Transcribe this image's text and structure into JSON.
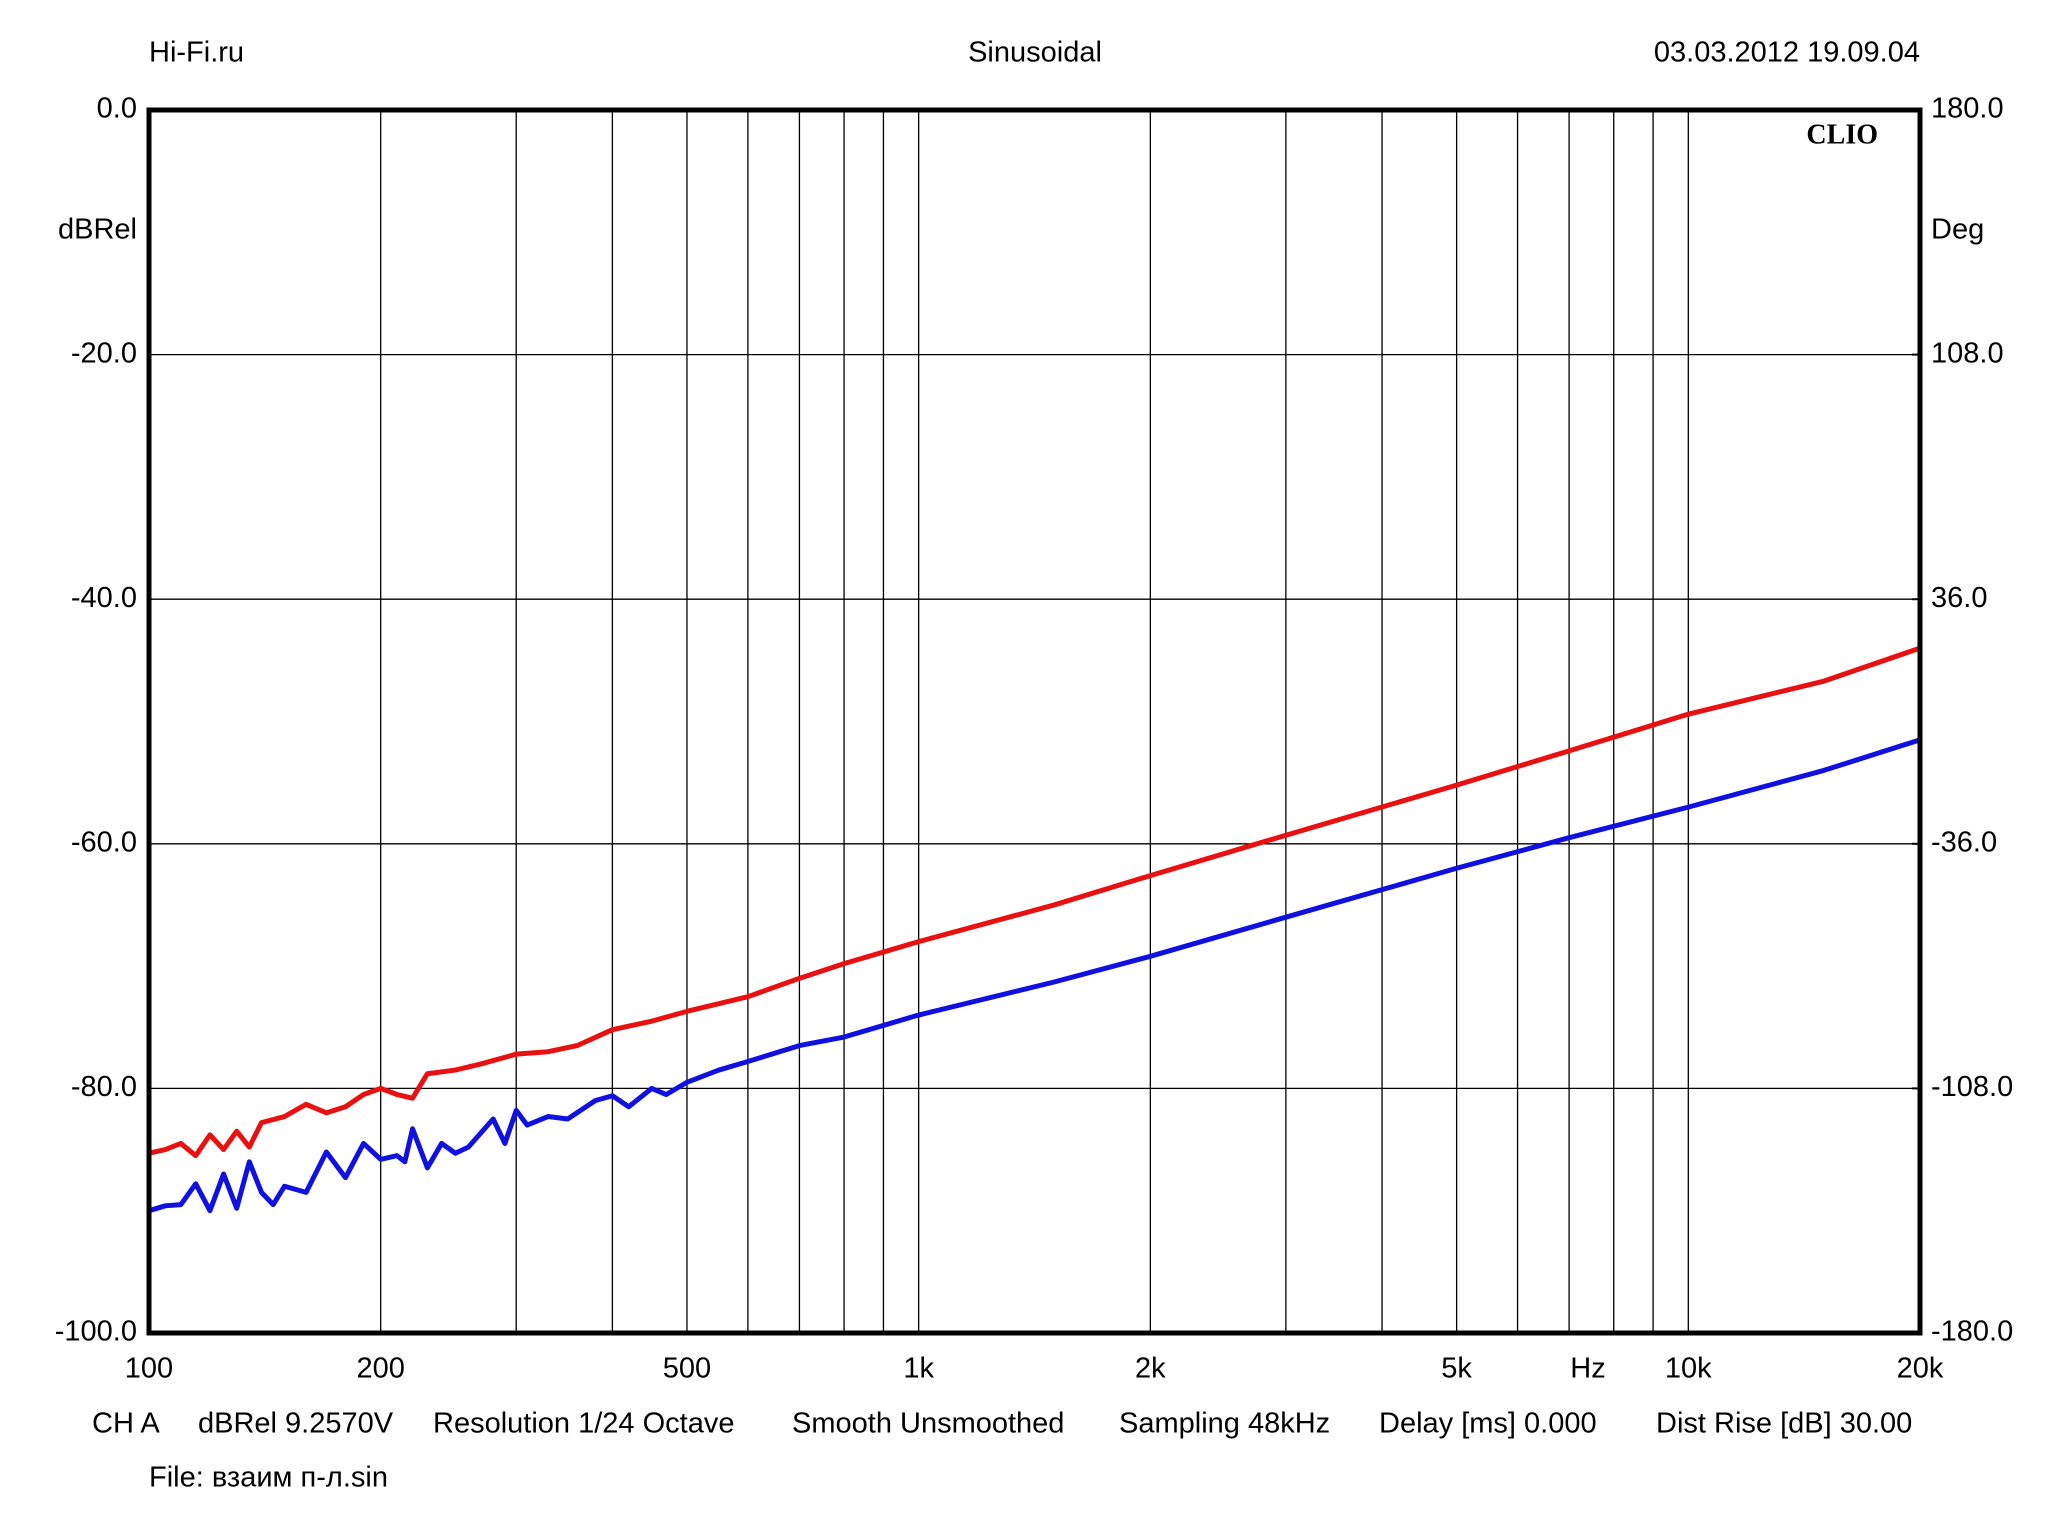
{
  "chart_data": {
    "type": "line",
    "header": {
      "left": "Hi-Fi.ru",
      "center": "Sinusoidal",
      "right": "03.03.2012 19.09.04"
    },
    "brand": "CLIO",
    "ylabel": "dBRel",
    "y2label": "Deg",
    "xlabel": "Hz",
    "xlog": true,
    "xlim": [
      100,
      20000
    ],
    "xticks": [
      100,
      200,
      500,
      {
        "value": 1000,
        "label": "1k"
      },
      {
        "value": 2000,
        "label": "2k"
      },
      {
        "value": 5000,
        "label": "5k"
      },
      {
        "value": 10000,
        "label": "10k"
      },
      {
        "value": 20000,
        "label": "20k"
      }
    ],
    "xgrid": [
      100,
      200,
      300,
      400,
      500,
      600,
      700,
      800,
      900,
      1000,
      2000,
      3000,
      4000,
      5000,
      6000,
      7000,
      8000,
      9000,
      10000,
      20000
    ],
    "ylim": [
      -100,
      0
    ],
    "yticks": [
      {
        "value": -100,
        "label": "-100.0"
      },
      {
        "value": -80,
        "label": "-80.0"
      },
      {
        "value": -60,
        "label": "-60.0"
      },
      {
        "value": -40,
        "label": "-40.0"
      },
      {
        "value": -20,
        "label": "-20.0"
      },
      {
        "value": 0,
        "label": "0.0"
      }
    ],
    "y2lim": [
      -180,
      180
    ],
    "y2ticks": [
      {
        "value": -180,
        "label": "-180.0"
      },
      {
        "value": -108,
        "label": "-108.0"
      },
      {
        "value": -36,
        "label": "-36.0"
      },
      {
        "value": 36,
        "label": "36.0"
      },
      {
        "value": 108,
        "label": "108.0"
      },
      {
        "value": 180,
        "label": "180.0"
      }
    ],
    "grid": true,
    "series": [
      {
        "color": "#e81010",
        "x": [
          100,
          105,
          110,
          115,
          120,
          125,
          130,
          135,
          140,
          150,
          160,
          170,
          180,
          190,
          200,
          210,
          220,
          230,
          250,
          270,
          300,
          330,
          360,
          400,
          450,
          500,
          600,
          700,
          800,
          1000,
          1500,
          2000,
          3000,
          5000,
          7000,
          10000,
          15000,
          20000
        ],
        "values": [
          -85.3,
          -85,
          -84.5,
          -85.5,
          -83.8,
          -85,
          -83.5,
          -84.8,
          -82.8,
          -82.3,
          -81.3,
          -82,
          -81.5,
          -80.5,
          -80,
          -80.5,
          -80.8,
          -78.8,
          -78.5,
          -78,
          -77.2,
          -77,
          -76.5,
          -75.2,
          -74.5,
          -73.7,
          -72.5,
          -71,
          -69.8,
          -68,
          -65,
          -62.6,
          -59.3,
          -55.2,
          -52.4,
          -49.4,
          -46.7,
          -44
        ]
      },
      {
        "color": "#1010e0",
        "x": [
          100,
          105,
          110,
          115,
          120,
          125,
          130,
          135,
          140,
          145,
          150,
          160,
          170,
          180,
          190,
          200,
          210,
          215,
          220,
          230,
          240,
          250,
          260,
          280,
          290,
          300,
          310,
          330,
          350,
          380,
          400,
          420,
          450,
          470,
          500,
          550,
          600,
          700,
          800,
          1000,
          1500,
          2000,
          3000,
          5000,
          7000,
          10000,
          15000,
          20000
        ],
        "values": [
          -90,
          -89.6,
          -89.5,
          -87.8,
          -90,
          -87,
          -89.8,
          -86,
          -88.5,
          -89.5,
          -88,
          -88.5,
          -85.2,
          -87.3,
          -84.5,
          -85.8,
          -85.5,
          -86,
          -83.3,
          -86.5,
          -84.5,
          -85.3,
          -84.8,
          -82.5,
          -84.5,
          -81.8,
          -83,
          -82.3,
          -82.5,
          -81,
          -80.6,
          -81.5,
          -80,
          -80.5,
          -79.5,
          -78.5,
          -77.8,
          -76.5,
          -75.8,
          -74,
          -71.3,
          -69.2,
          -66,
          -62,
          -59.5,
          -57,
          -54,
          -51.5
        ]
      }
    ],
    "footer": [
      "CH A",
      "dBRel 9.2570V",
      "Resolution 1/24 Octave",
      "Smooth Unsmoothed",
      "Sampling 48kHz",
      "Delay [ms] 0.000",
      "Dist Rise [dB] 30.00"
    ],
    "file": "File: взаим п-л.sin"
  }
}
